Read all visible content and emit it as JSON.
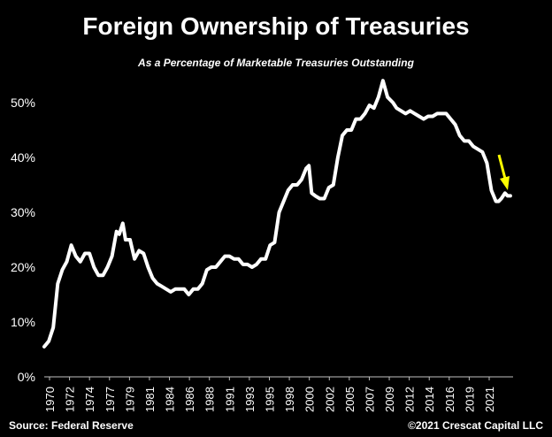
{
  "title": "Foreign Ownership of Treasuries",
  "subtitle": "As a Percentage of Marketable Treasuries Outstanding",
  "source": "Source: Federal Reserve",
  "copyright": "©2021 Crescat Capital LLC",
  "colors": {
    "background": "#000000",
    "line": "#ffffff",
    "arrow": "#ffff00",
    "axis": "#bfbfbf"
  },
  "chart_data": {
    "type": "line",
    "title": "Foreign Ownership of Treasuries",
    "subtitle": "As a Percentage of Marketable Treasuries Outstanding",
    "xlim": [
      1970,
      2021.9
    ],
    "ylim": [
      0,
      55
    ],
    "grid": false,
    "yticks": [
      {
        "value": 0,
        "label": "0%"
      },
      {
        "value": 10,
        "label": "10%"
      },
      {
        "value": 20,
        "label": "20%"
      },
      {
        "value": 30,
        "label": "30%"
      },
      {
        "value": 40,
        "label": "40%"
      },
      {
        "value": 50,
        "label": "50%"
      }
    ],
    "xticks": [
      "1970",
      "1972",
      "1974",
      "1977",
      "1979",
      "1981",
      "1984",
      "1986",
      "1988",
      "1991",
      "1993",
      "1995",
      "1998",
      "2000",
      "2002",
      "2005",
      "2007",
      "2009",
      "2012",
      "2014",
      "2016",
      "2019",
      "2021"
    ],
    "series": [
      {
        "x": [
          1970,
          1970.5,
          1971,
          1971.5,
          1972,
          1972.5,
          1973,
          1973.5,
          1974,
          1974.5,
          1975,
          1975.5,
          1976,
          1976.5,
          1977,
          1977.5,
          1978,
          1978.3,
          1978.7,
          1979,
          1979.5,
          1980,
          1980.5,
          1981,
          1981.5,
          1982,
          1982.5,
          1983,
          1983.5,
          1984,
          1984.5,
          1985,
          1985.5,
          1986,
          1986.5,
          1987,
          1987.5,
          1988,
          1988.5,
          1989,
          1989.5,
          1990,
          1990.5,
          1991,
          1991.5,
          1992,
          1992.5,
          1993,
          1993.5,
          1994,
          1994.5,
          1995,
          1995.5,
          1996,
          1996.5,
          1997,
          1997.5,
          1998,
          1998.5,
          1999,
          1999.3,
          1999.6,
          2000,
          2000.5,
          2001,
          2001.5,
          2002,
          2002.5,
          2003,
          2003.5,
          2004,
          2004.5,
          2005,
          2005.5,
          2006,
          2006.5,
          2007,
          2007.5,
          2008,
          2008.3,
          2008.6,
          2009,
          2009.5,
          2010,
          2010.5,
          2011,
          2011.5,
          2012,
          2012.5,
          2013,
          2013.5,
          2014,
          2014.5,
          2015,
          2015.5,
          2016,
          2016.5,
          2017,
          2017.5,
          2018,
          2018.5,
          2019,
          2019.5,
          2020,
          2020.3,
          2020.6,
          2021,
          2021.3,
          2021.6
        ],
        "y": [
          5.5,
          6.5,
          9,
          17,
          19.5,
          21,
          24,
          22,
          21,
          22.5,
          22.5,
          20,
          18.5,
          18.5,
          20,
          22,
          26.5,
          26,
          28,
          25,
          25,
          21.5,
          23,
          22.5,
          20,
          18,
          17,
          16.5,
          16,
          15.5,
          16,
          16,
          16,
          15,
          16,
          16,
          17,
          19.5,
          20,
          20,
          21,
          22,
          22,
          21.5,
          21.5,
          20.5,
          20.5,
          20,
          20.5,
          21.5,
          21.5,
          24,
          24.5,
          30,
          32,
          34,
          35,
          35,
          36,
          38,
          38.5,
          33.5,
          33,
          32.5,
          32.5,
          34.5,
          35,
          40,
          44,
          45,
          45,
          47,
          47,
          48,
          49.5,
          49,
          51,
          54,
          51,
          50.5,
          50,
          49,
          48.5,
          48,
          48.5,
          48,
          47.5,
          47,
          47.5,
          47.5,
          48,
          48,
          48,
          47,
          46,
          44,
          43,
          43,
          42,
          41.5,
          41,
          39,
          34,
          32,
          32,
          32.5,
          33.5,
          33,
          33
        ]
      }
    ],
    "annotations": [
      {
        "type": "arrow",
        "direction": "down",
        "color": "#ffff00"
      }
    ]
  }
}
